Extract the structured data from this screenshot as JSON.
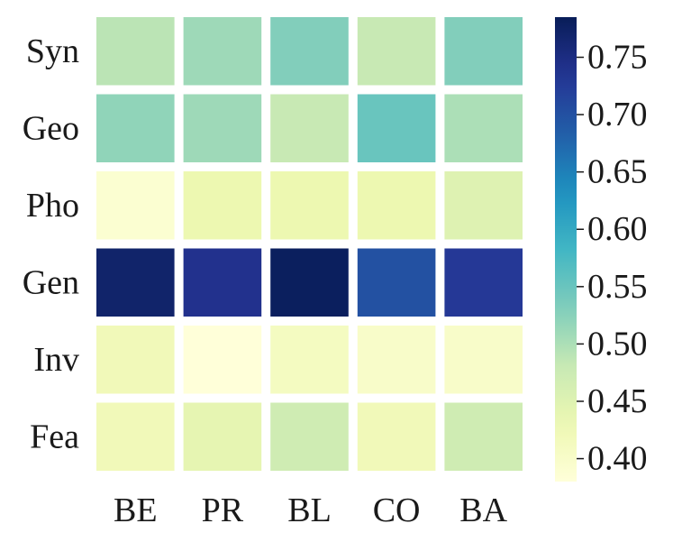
{
  "chart_data": {
    "type": "heatmap",
    "title": "",
    "xlabel": "",
    "ylabel": "",
    "columns": [
      "BE",
      "PR",
      "BL",
      "CO",
      "BA"
    ],
    "rows": [
      "Syn",
      "Geo",
      "Pho",
      "Gen",
      "Inv",
      "Fea"
    ],
    "values": [
      [
        0.49,
        0.51,
        0.53,
        0.48,
        0.53
      ],
      [
        0.52,
        0.51,
        0.48,
        0.55,
        0.5
      ],
      [
        0.39,
        0.43,
        0.43,
        0.43,
        0.45
      ],
      [
        0.77,
        0.74,
        0.78,
        0.7,
        0.73
      ],
      [
        0.42,
        0.38,
        0.41,
        0.4,
        0.4
      ],
      [
        0.42,
        0.44,
        0.47,
        0.42,
        0.47
      ]
    ],
    "colorbar": {
      "colormap": "YlGnBu",
      "min": 0.38,
      "max": 0.785,
      "ticks": [
        "0.40",
        "0.45",
        "0.50",
        "0.55",
        "0.60",
        "0.65",
        "0.70",
        "0.75"
      ]
    }
  }
}
